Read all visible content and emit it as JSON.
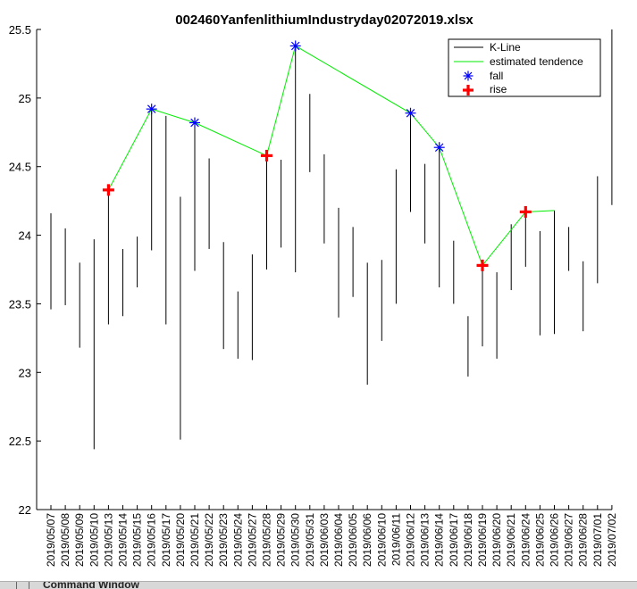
{
  "chart_data": {
    "type": "line",
    "title": "002460YanfenlithiumIndustryday02072019.xlsx",
    "xlabel": "",
    "ylabel": "",
    "ylim": [
      22,
      25.5
    ],
    "yticks": [
      22,
      22.5,
      23,
      23.5,
      24,
      24.5,
      25,
      25.5
    ],
    "grid": false,
    "legend_position": "top-right",
    "categories": [
      "2019/05/07",
      "2019/05/08",
      "2019/05/09",
      "2019/05/10",
      "2019/05/13",
      "2019/05/14",
      "2019/05/15",
      "2019/05/16",
      "2019/05/17",
      "2019/05/20",
      "2019/05/21",
      "2019/05/22",
      "2019/05/23",
      "2019/05/24",
      "2019/05/27",
      "2019/05/28",
      "2019/05/29",
      "2019/05/30",
      "2019/05/31",
      "2019/06/03",
      "2019/06/04",
      "2019/06/05",
      "2019/06/06",
      "2019/06/10",
      "2019/06/11",
      "2019/06/12",
      "2019/06/13",
      "2019/06/14",
      "2019/06/17",
      "2019/06/18",
      "2019/06/19",
      "2019/06/20",
      "2019/06/21",
      "2019/06/24",
      "2019/06/25",
      "2019/06/26",
      "2019/06/27",
      "2019/06/28",
      "2019/07/01",
      "2019/07/02"
    ],
    "kline": [
      [
        23.46,
        24.16
      ],
      [
        23.49,
        24.05
      ],
      [
        23.18,
        23.8
      ],
      [
        22.44,
        23.97
      ],
      [
        23.35,
        24.33
      ],
      [
        23.41,
        23.9
      ],
      [
        23.62,
        23.99
      ],
      [
        23.89,
        24.92
      ],
      [
        23.35,
        24.87
      ],
      [
        22.51,
        24.28
      ],
      [
        23.74,
        24.82
      ],
      [
        23.9,
        24.56
      ],
      [
        23.17,
        23.95
      ],
      [
        23.1,
        23.59
      ],
      [
        23.09,
        23.86
      ],
      [
        23.75,
        24.58
      ],
      [
        23.91,
        24.55
      ],
      [
        23.73,
        25.38
      ],
      [
        24.46,
        25.03
      ],
      [
        23.94,
        24.59
      ],
      [
        23.4,
        24.2
      ],
      [
        23.55,
        24.06
      ],
      [
        22.91,
        23.8
      ],
      [
        23.23,
        23.82
      ],
      [
        23.5,
        24.48
      ],
      [
        24.17,
        24.89
      ],
      [
        23.94,
        24.52
      ],
      [
        23.62,
        24.64
      ],
      [
        23.5,
        23.96
      ],
      [
        22.97,
        23.41
      ],
      [
        23.19,
        23.78
      ],
      [
        23.1,
        23.73
      ],
      [
        23.6,
        24.08
      ],
      [
        23.77,
        24.17
      ],
      [
        23.27,
        24.03
      ],
      [
        23.28,
        24.18
      ],
      [
        23.74,
        24.06
      ],
      [
        23.3,
        23.81
      ],
      [
        23.65,
        24.43
      ],
      [
        24.22,
        25.5
      ]
    ],
    "series": [
      {
        "name": "K-Line",
        "color": "#000000",
        "style": "vertical-range"
      },
      {
        "name": "estimated tendence",
        "color": "#00ee00",
        "points": [
          [
            4,
            24.33
          ],
          [
            7,
            24.92
          ],
          [
            10,
            24.82
          ],
          [
            15,
            24.58
          ],
          [
            17,
            25.38
          ],
          [
            25,
            24.89
          ],
          [
            27,
            24.64
          ],
          [
            30,
            23.78
          ],
          [
            33,
            24.17
          ],
          [
            35,
            24.18
          ]
        ]
      },
      {
        "name": "fall",
        "color": "#0000ff",
        "marker": "asterisk",
        "points": [
          [
            7,
            24.92
          ],
          [
            10,
            24.82
          ],
          [
            17,
            25.38
          ],
          [
            25,
            24.89
          ],
          [
            27,
            24.64
          ]
        ]
      },
      {
        "name": "rise",
        "color": "#ff0000",
        "marker": "plus",
        "points": [
          [
            4,
            24.33
          ],
          [
            15,
            24.58
          ],
          [
            30,
            23.78
          ],
          [
            33,
            24.17
          ]
        ]
      }
    ]
  },
  "footer": {
    "label": "Command Window"
  }
}
